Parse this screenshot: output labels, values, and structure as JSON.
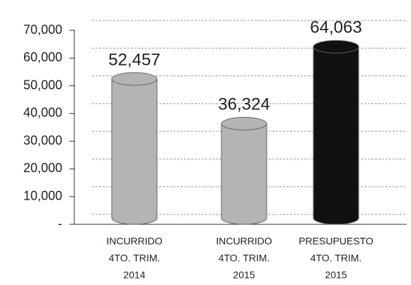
{
  "chart_data": {
    "type": "bar",
    "categories": [
      [
        "INCURRIDO",
        "4TO. TRIM.",
        "2014"
      ],
      [
        "INCURRIDO",
        "4TO. TRIM.",
        "2015"
      ],
      [
        "PRESUPUESTO",
        "4TO. TRIM.",
        "2015"
      ]
    ],
    "values": [
      52457,
      36324,
      64063
    ],
    "value_labels": [
      "52,457",
      "36,324",
      "64,063"
    ],
    "colors": [
      "#b4b4b4",
      "#b4b4b4",
      "#111111"
    ],
    "ylim": [
      0,
      70000
    ],
    "yticks": [
      {
        "value": 0,
        "label": "-"
      },
      {
        "value": 10000,
        "label": "10,000"
      },
      {
        "value": 20000,
        "label": "20,000"
      },
      {
        "value": 30000,
        "label": "30,000"
      },
      {
        "value": 40000,
        "label": "40,000"
      },
      {
        "value": 50000,
        "label": "50,000"
      },
      {
        "value": 60000,
        "label": "60,000"
      },
      {
        "value": 70000,
        "label": "70,000"
      }
    ],
    "grid": true
  }
}
